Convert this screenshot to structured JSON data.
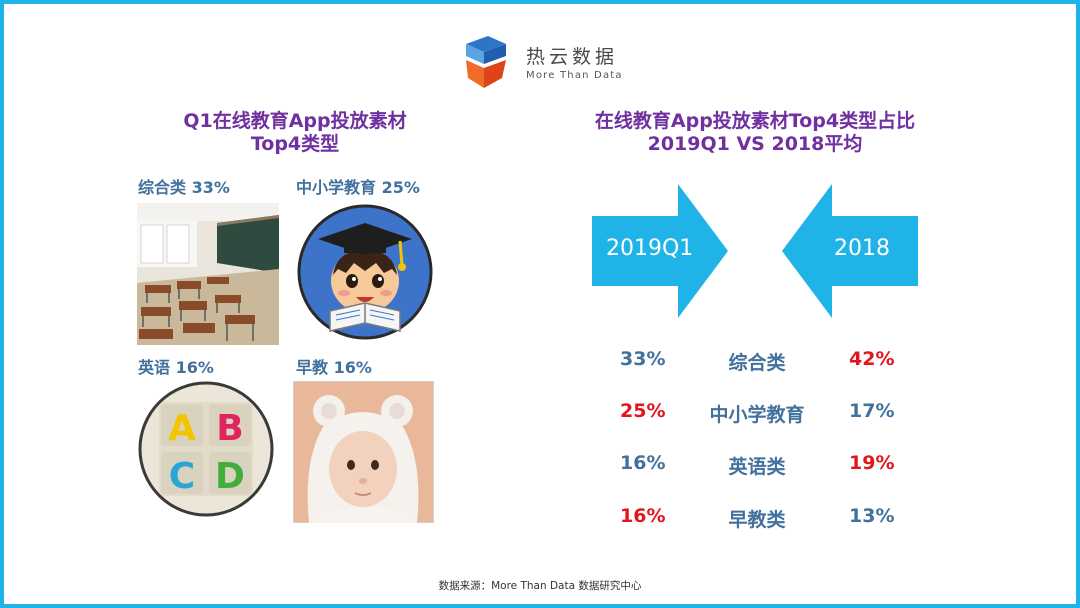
{
  "logo": {
    "cn": "热云数据",
    "en": "More Than Data"
  },
  "left_title": {
    "line1": "Q1在线教育App投放素材",
    "line2": "Top4类型"
  },
  "categories": [
    {
      "label": "综合类 33%",
      "icon": "classroom-photo"
    },
    {
      "label": "中小学教育 25%",
      "icon": "student-cartoon"
    },
    {
      "label": "英语 16%",
      "icon": "abcd-blocks"
    },
    {
      "label": "早教 16%",
      "icon": "baby-photo"
    }
  ],
  "right_title": {
    "line1": "在线教育App投放素材Top4类型占比",
    "line2": "2019Q1 VS 2018平均"
  },
  "arrows": {
    "left": "2019Q1",
    "right": "2018"
  },
  "comparison": [
    {
      "q1": "33%",
      "category": "综合类",
      "avg2018": "42%",
      "q1_higher": false
    },
    {
      "q1": "25%",
      "category": "中小学教育",
      "avg2018": "17%",
      "q1_higher": true
    },
    {
      "q1": "16%",
      "category": "英语类",
      "avg2018": "19%",
      "q1_higher": false
    },
    {
      "q1": "16%",
      "category": "早教类",
      "avg2018": "13%",
      "q1_higher": true
    }
  ],
  "colors": {
    "accent_blue": "#1fb3e8",
    "title_purple": "#7030a0",
    "label_blue": "#41719c",
    "highlight_red": "#e3141b"
  },
  "footer": "数据来源：More Than Data 数据研究中心"
}
